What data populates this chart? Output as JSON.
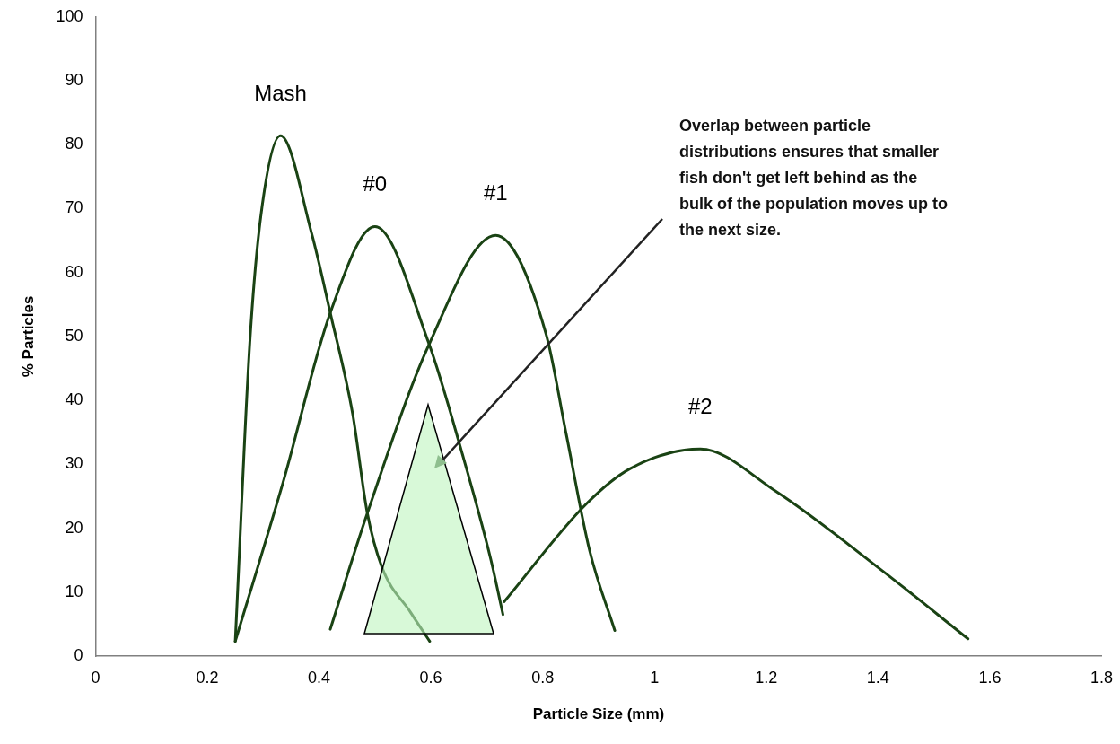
{
  "chart_data": {
    "type": "line",
    "xlabel": "Particle Size (mm)",
    "ylabel": "% Particles",
    "xlim": [
      0,
      1.8
    ],
    "xticks": [
      0,
      0.2,
      0.4,
      0.6,
      0.8,
      1,
      1.2,
      1.4,
      1.6,
      1.8
    ],
    "ylim": [
      0,
      100
    ],
    "yticks": [
      0,
      10,
      20,
      30,
      40,
      50,
      60,
      70,
      80,
      90,
      100
    ],
    "grid": false,
    "legend": false,
    "marker": "none",
    "line_style": "solid",
    "annotations": [
      "Overlap between particle distributions ensures that smaller fish don't get left behind as the bulk of the population moves up to the next size."
    ],
    "series": [
      {
        "name": "Mash",
        "color": "#1a4314",
        "x": [
          0.25,
          0.276,
          0.296,
          0.331,
          0.387,
          0.42,
          0.46,
          0.486,
          0.512,
          0.564,
          0.598
        ],
        "values": [
          2.3,
          49,
          69,
          81.4,
          66,
          53.7,
          37.9,
          22.5,
          14,
          6.8,
          2.3
        ]
      },
      {
        "name": "#0",
        "color": "#1a4314",
        "x": [
          0.25,
          0.335,
          0.42,
          0.5,
          0.596,
          0.655,
          0.707,
          0.729
        ],
        "values": [
          2.3,
          27,
          53.7,
          67.2,
          49,
          32,
          15.2,
          6.5
        ]
      },
      {
        "name": "#1",
        "color": "#1a4314",
        "x": [
          0.42,
          0.485,
          0.596,
          0.716,
          0.806,
          0.842,
          0.884,
          0.929
        ],
        "values": [
          4.2,
          22,
          48.6,
          65.8,
          50.4,
          34.8,
          16.5,
          4
        ]
      },
      {
        "name": "#2",
        "color": "#1a4314",
        "x": [
          0.731,
          0.878,
          0.956,
          1.082,
          1.215,
          1.407,
          1.561
        ],
        "values": [
          8.5,
          23.8,
          29.3,
          32.4,
          25.9,
          13.4,
          2.7
        ]
      }
    ]
  }
}
